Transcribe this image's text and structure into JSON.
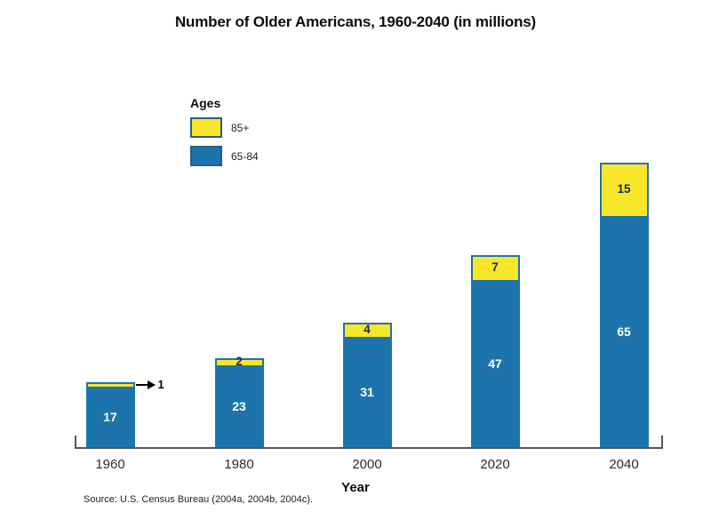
{
  "title": "Number of Older Americans, 1960-2040 (in millions)",
  "legend": {
    "heading": "Ages",
    "items": [
      {
        "label": "85+",
        "color": "#F7E62A",
        "border": "#2B5C85"
      },
      {
        "label": "65-84",
        "color": "#1D74AC",
        "border": "#2B5C85"
      }
    ]
  },
  "chart_data": {
    "type": "bar",
    "stacked": true,
    "title": "Number of Older Americans, 1960-2040 (in millions)",
    "categories": [
      "1960",
      "1980",
      "2000",
      "2020",
      "2040"
    ],
    "series": [
      {
        "name": "65-84",
        "color": "#1D74AC",
        "values": [
          17,
          23,
          31,
          47,
          65
        ]
      },
      {
        "name": "85+",
        "color": "#F7E62A",
        "values": [
          1,
          2,
          4,
          7,
          15
        ]
      }
    ],
    "xlabel": "Year",
    "ylabel": "",
    "value_labels_shown": true,
    "legend_position": "upper-left",
    "grid": false,
    "annotation": {
      "category": "1960",
      "series": "85+",
      "label": "1"
    }
  },
  "axis": {
    "xlabel": "Year"
  },
  "source": "Source: U.S. Census Bureau (2004a, 2004b, 2004c).",
  "colors": {
    "bar_blue": "#1D74AC",
    "bar_yellow": "#F7E62A",
    "yellow_border": "#1D74AC",
    "label_on_blue": "#ffffff",
    "label_on_yellow": "#1a2c52",
    "axis": "#555555",
    "background": "#ffffff"
  }
}
